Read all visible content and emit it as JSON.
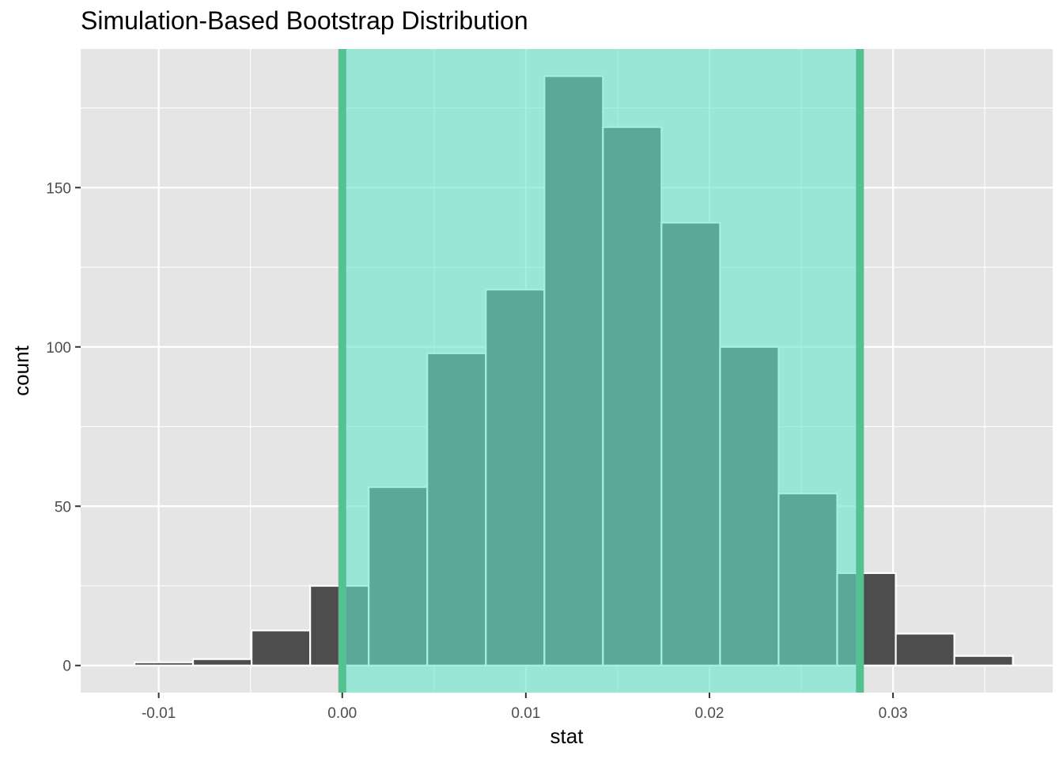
{
  "chart_data": {
    "type": "bar",
    "title": "Simulation-Based Bootstrap Distribution",
    "xlabel": "stat",
    "ylabel": "count",
    "xlim": [
      -0.01425,
      0.0387
    ],
    "ylim": [
      -8.5,
      193.5
    ],
    "x_ticks": [
      {
        "value": -0.01,
        "label": "-0.01"
      },
      {
        "value": 0.0,
        "label": "0.00"
      },
      {
        "value": 0.01,
        "label": "0.01"
      },
      {
        "value": 0.02,
        "label": "0.02"
      },
      {
        "value": 0.03,
        "label": "0.03"
      }
    ],
    "y_ticks": [
      {
        "value": 0,
        "label": "0"
      },
      {
        "value": 50,
        "label": "50"
      },
      {
        "value": 100,
        "label": "100"
      },
      {
        "value": 150,
        "label": "150"
      }
    ],
    "grid": true,
    "bin_edges": [
      -0.01132,
      -0.00813,
      -0.00494,
      -0.00175,
      0.00144,
      0.00463,
      0.00782,
      0.01101,
      0.0142,
      0.01739,
      0.02058,
      0.02377,
      0.02696,
      0.03015,
      0.03334,
      0.03653
    ],
    "counts": [
      1,
      2,
      11,
      25,
      56,
      98,
      118,
      185,
      169,
      139,
      100,
      54,
      29,
      10,
      3
    ],
    "confidence_interval": {
      "lower": 0.0,
      "upper": 0.0282
    },
    "colors": {
      "panel_background": "#e5e5e5",
      "gridline": "#ffffff",
      "bar_fill": "#4d4d4d",
      "bar_outline": "#ffffff",
      "ci_shade": "#66e6cc",
      "ci_line": "#54c290"
    }
  }
}
